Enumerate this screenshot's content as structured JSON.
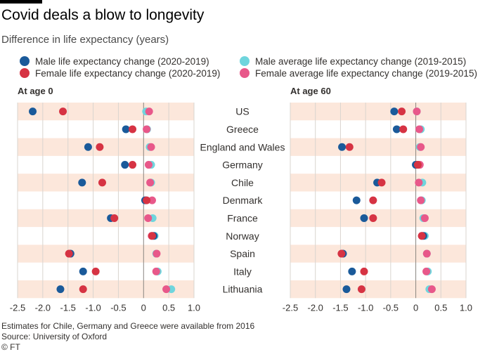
{
  "title": "Covid deals a blow to longevity",
  "subtitle": "Difference in life expectancy (years)",
  "legend": [
    {
      "label": "Male life expectancy change (2020-2019)",
      "color": "#1a5a9a"
    },
    {
      "label": "Female life expectancy change (2020-2019)",
      "color": "#d63343"
    },
    {
      "label": "Male average life expectancy change (2019-2015)",
      "color": "#6fd5dd"
    },
    {
      "label": "Female average life expectancy change (2019-2015)",
      "color": "#e8588a"
    }
  ],
  "footer": {
    "note": "Estimates for Chile, Germany and Greece were available from 2016",
    "source": "Source: University of Oxford",
    "credit": "© FT"
  },
  "chart_data": [
    {
      "type": "scatter",
      "title": "At age 0",
      "categories": [
        "US",
        "Greece",
        "England and Wales",
        "Germany",
        "Chile",
        "Denmark",
        "France",
        "Norway",
        "Spain",
        "Italy",
        "Lithuania"
      ],
      "xlim": [
        -2.5,
        1.0
      ],
      "xticks": [
        -2.5,
        -2.0,
        -1.5,
        -1.0,
        -0.5,
        0,
        0.5,
        1.0
      ],
      "xtick_labels": [
        "-2.5",
        "-2.0",
        "-1.5",
        "-1.0",
        "-0.5",
        "0",
        "0.5",
        "1.0"
      ],
      "series": [
        {
          "name": "Male average life expectancy change (2019-2015)",
          "values": [
            0.05,
            0.07,
            0.12,
            0.15,
            0.15,
            0.05,
            0.18,
            0.22,
            0.25,
            0.28,
            0.55
          ]
        },
        {
          "name": "Female average life expectancy change (2019-2015)",
          "values": [
            0.11,
            0.06,
            0.15,
            0.1,
            0.13,
            0.17,
            0.09,
            0.16,
            0.26,
            0.25,
            0.45
          ]
        },
        {
          "name": "Male life expectancy change (2020-2019)",
          "values": [
            -2.2,
            -0.35,
            -1.1,
            -0.37,
            -1.22,
            0.03,
            -0.65,
            0.2,
            -1.45,
            -1.2,
            -1.65
          ]
        },
        {
          "name": "Female life expectancy change (2020-2019)",
          "values": [
            -1.6,
            -0.22,
            -0.87,
            -0.22,
            -0.82,
            0.06,
            -0.58,
            0.17,
            -1.48,
            -0.95,
            -1.2
          ]
        }
      ]
    },
    {
      "type": "scatter",
      "title": "At age 60",
      "categories": [
        "US",
        "Greece",
        "England and Wales",
        "Germany",
        "Chile",
        "Denmark",
        "France",
        "Norway",
        "Spain",
        "Italy",
        "Lithuania"
      ],
      "xlim": [
        -2.5,
        1.0
      ],
      "xticks": [
        -2.5,
        -2.0,
        -1.5,
        -1.0,
        -0.5,
        0,
        0.5,
        1.0
      ],
      "xtick_labels": [
        "-2.5",
        "-2.0",
        "-1.5",
        "-1.0",
        "-0.5",
        "0",
        "0.5",
        "1.0"
      ],
      "series": [
        {
          "name": "Male average life expectancy change (2019-2015)",
          "values": [
            0.02,
            0.1,
            0.08,
            0.05,
            0.13,
            0.12,
            0.15,
            0.18,
            0.22,
            0.24,
            0.27
          ]
        },
        {
          "name": "Female average life expectancy change (2019-2015)",
          "values": [
            0.02,
            0.07,
            0.1,
            0.08,
            0.06,
            0.1,
            0.18,
            0.12,
            0.22,
            0.21,
            0.32
          ]
        },
        {
          "name": "Male life expectancy change (2020-2019)",
          "values": [
            -0.43,
            -0.38,
            -1.47,
            0.0,
            -0.77,
            -1.18,
            -1.03,
            0.15,
            -1.45,
            -1.27,
            -1.38
          ]
        },
        {
          "name": "Female life expectancy change (2020-2019)",
          "values": [
            -0.28,
            -0.25,
            -1.32,
            0.04,
            -0.68,
            -0.85,
            -0.85,
            0.12,
            -1.48,
            -1.03,
            -1.08
          ]
        }
      ]
    }
  ]
}
